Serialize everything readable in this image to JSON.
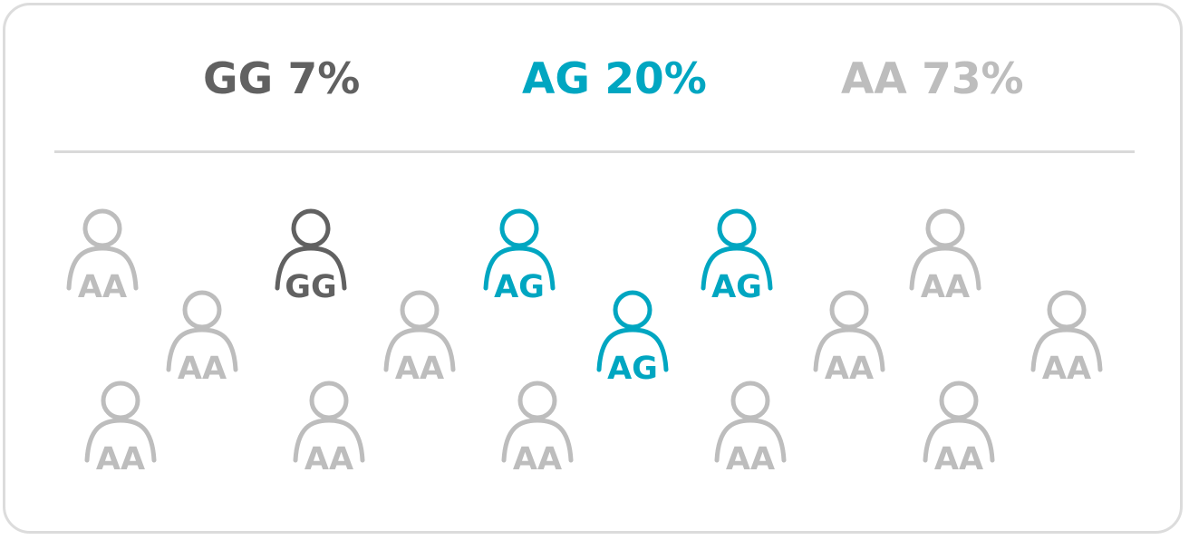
{
  "summary": [
    {
      "genotype": "GG",
      "percent_label": "7%",
      "color": "#616161"
    },
    {
      "genotype": "AG",
      "percent_label": "20%",
      "color": "#00a6c1"
    },
    {
      "genotype": "AA",
      "percent_label": "73%",
      "color": "#bdbdbd"
    }
  ],
  "colors": {
    "GG": "#616161",
    "AG": "#00a6c1",
    "AA": "#bdbdbd"
  },
  "people": [
    {
      "label": "AA"
    },
    {
      "label": "GG"
    },
    {
      "label": "AG"
    },
    {
      "label": "AG"
    },
    {
      "label": "AA"
    },
    {
      "label": "AA"
    },
    {
      "label": "AA"
    },
    {
      "label": "AG"
    },
    {
      "label": "AA"
    },
    {
      "label": "AA"
    },
    {
      "label": "AA"
    },
    {
      "label": "AA"
    },
    {
      "label": "AA"
    },
    {
      "label": "AA"
    },
    {
      "label": "AA"
    }
  ]
}
